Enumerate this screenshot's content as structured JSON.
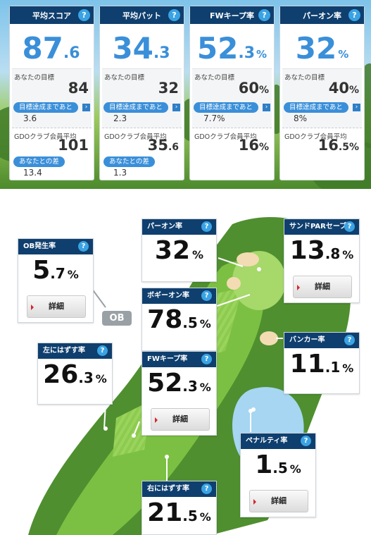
{
  "summary": [
    {
      "title": "平均スコア",
      "int": "87",
      "dec": ".6",
      "unit": "",
      "target_label": "あなたの目標",
      "target_int": "84",
      "target_dec": "",
      "target_unit": "",
      "until_label": "目標達成まであと",
      "until_value": "3.6",
      "avg_label": "GDOクラブ会員平均",
      "avg_int": "101",
      "avg_dec": "",
      "avg_unit": "",
      "diff_label": "あなたとの差",
      "diff_value": "13.4"
    },
    {
      "title": "平均パット",
      "int": "34",
      "dec": ".3",
      "unit": "",
      "target_label": "あなたの目標",
      "target_int": "32",
      "target_dec": "",
      "target_unit": "",
      "until_label": "目標達成まであと",
      "until_value": "2.3",
      "avg_label": "GDOクラブ会員平均",
      "avg_int": "35",
      "avg_dec": ".6",
      "avg_unit": "",
      "diff_label": "あなたとの差",
      "diff_value": "1.3"
    },
    {
      "title": "FWキープ率",
      "int": "52",
      "dec": ".3",
      "unit": "%",
      "target_label": "あなたの目標",
      "target_int": "60",
      "target_dec": "",
      "target_unit": "%",
      "until_label": "目標達成まであと",
      "until_value": "7.7%",
      "avg_label": "GDOクラブ会員平均",
      "avg_int": "16",
      "avg_dec": "",
      "avg_unit": "%"
    },
    {
      "title": "パーオン率",
      "int": "32",
      "dec": "",
      "unit": "%",
      "target_label": "あなたの目標",
      "target_int": "40",
      "target_dec": "",
      "target_unit": "%",
      "until_label": "目標達成まであと",
      "until_value": "8%",
      "avg_label": "GDOクラブ会員平均",
      "avg_int": "16",
      "avg_dec": ".5",
      "avg_unit": "%"
    }
  ],
  "help_glyph": "?",
  "arrow_glyph": "›",
  "map": {
    "ob": {
      "title": "OB発生率",
      "int": "5",
      "dec": ".7",
      "unit": "%",
      "detail": "詳細"
    },
    "ob_tag": "OB",
    "paron": {
      "title": "パーオン率",
      "int": "32",
      "dec": "",
      "unit": "%"
    },
    "sandpar": {
      "title": "サンドPARセーブ",
      "int": "13",
      "dec": ".8",
      "unit": "%",
      "detail": "詳細"
    },
    "bogey": {
      "title": "ボギーオン率",
      "int": "78",
      "dec": ".5",
      "unit": "%"
    },
    "left": {
      "title": "左にはずす率",
      "int": "26",
      "dec": ".3",
      "unit": "%"
    },
    "bunker": {
      "title": "バンカー率",
      "int": "11",
      "dec": ".1",
      "unit": "%"
    },
    "fw": {
      "title": "FWキープ率",
      "int": "52",
      "dec": ".3",
      "unit": "%",
      "detail": "詳細"
    },
    "penalty": {
      "title": "ペナルティ率",
      "int": "1",
      "dec": ".5",
      "unit": "%",
      "detail": "詳細"
    },
    "right": {
      "title": "右にはずす率",
      "int": "21",
      "dec": ".5",
      "unit": "%"
    }
  },
  "colors": {
    "header": "#0f3f6e",
    "accent": "#3a8fd9",
    "help": "#3aa3e3",
    "rough": "#4f8f2f",
    "fairway": "#7cc043",
    "green": "#a6d86a",
    "water": "#a6d6f2",
    "sand": "#f3dcb3"
  }
}
